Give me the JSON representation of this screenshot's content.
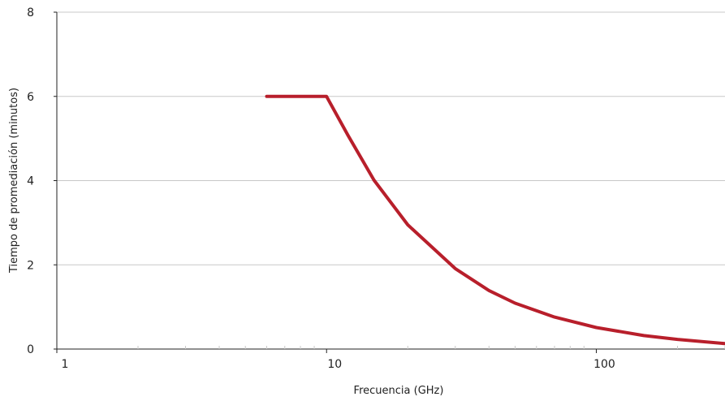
{
  "chart_data": {
    "type": "line",
    "title": "",
    "xlabel": "Frecuencia (GHz)",
    "ylabel": "Tiempo de promediación (minutos)",
    "x_scale": "log",
    "xlim": [
      1,
      300
    ],
    "ylim": [
      0,
      8
    ],
    "x_ticks": [
      {
        "value": 1,
        "label": "1"
      },
      {
        "value": 10,
        "label": "10"
      },
      {
        "value": 100,
        "label": "100"
      }
    ],
    "y_ticks": [
      {
        "value": 0,
        "label": "0"
      },
      {
        "value": 2,
        "label": "2"
      },
      {
        "value": 4,
        "label": "4"
      },
      {
        "value": 6,
        "label": "6"
      },
      {
        "value": 8,
        "label": "8"
      }
    ],
    "grid": "horizontal",
    "legend": "none",
    "series": [
      {
        "color": "#b81f2b",
        "x": [
          6,
          10,
          12,
          15,
          20,
          30,
          40,
          50,
          70,
          100,
          150,
          200,
          300
        ],
        "y": [
          6,
          6,
          5.08,
          4.01,
          2.95,
          1.91,
          1.39,
          1.09,
          0.76,
          0.51,
          0.32,
          0.23,
          0.13
        ]
      }
    ]
  },
  "colors": {
    "line": "#b81f2b",
    "grid": "#c8c8c8",
    "axis": "#222222"
  }
}
